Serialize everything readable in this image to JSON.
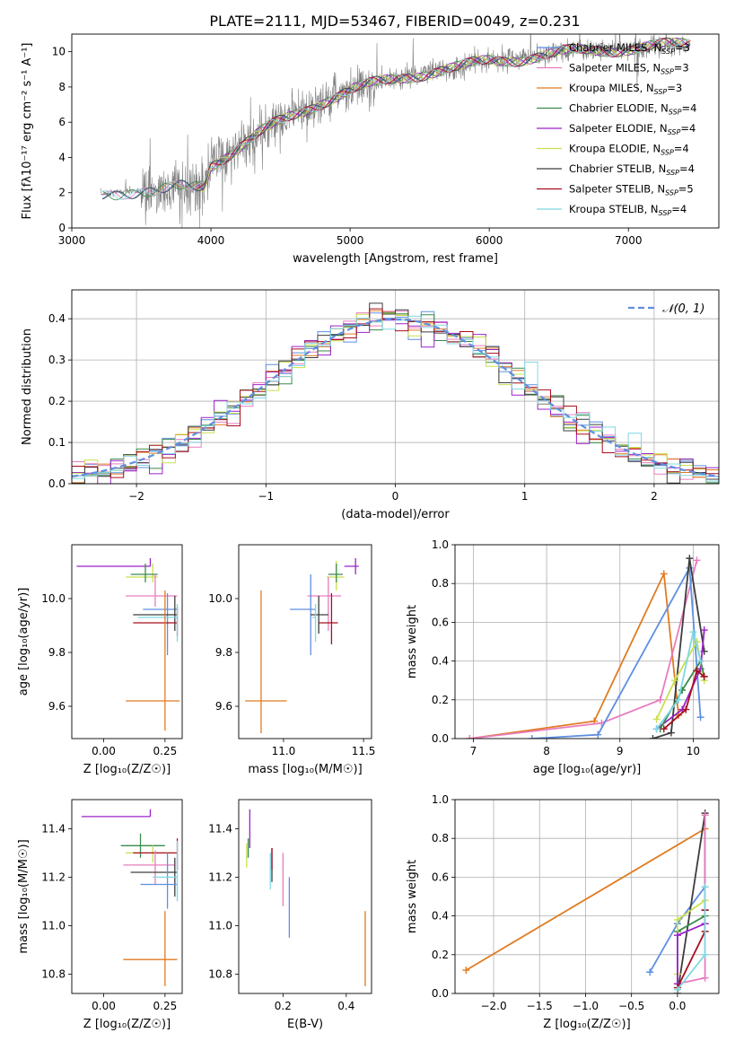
{
  "figure_title": "PLATE=2111, MJD=53467, FIBERID=0049, z=0.231",
  "colors": {
    "Chabrier MILES": "#5f8fe0",
    "Salpeter MILES": "#e87cbf",
    "Kroupa MILES": "#e07b20",
    "Chabrier ELODIE": "#3a8a4a",
    "Salpeter ELODIE": "#9b22c9",
    "Kroupa ELODIE": "#c8e04e",
    "Chabrier STELIB": "#3d3d3d",
    "Salpeter STELIB": "#a80f1f",
    "Kroupa STELIB": "#7fd8e4",
    "data": "#808080",
    "normal": "#5f8fe0"
  },
  "chart_data": [
    {
      "id": "spectrum",
      "type": "line",
      "xlabel": "wavelength [Angstrom, rest frame]",
      "ylabel": "Flux [fλ10⁻¹⁷ erg cm⁻² s⁻¹ A⁻¹]",
      "xlim": [
        3000,
        7650
      ],
      "ylim": [
        0,
        11
      ],
      "xticks": [
        "3000",
        "4000",
        "5000",
        "6000",
        "7000"
      ],
      "yticks": [
        "0",
        "2",
        "4",
        "6",
        "8",
        "10"
      ],
      "grid": false,
      "legend_position": "top-right",
      "legend": [
        {
          "label": "Chabrier MILES, N",
          "sub": "SSP",
          "suffix": "=3"
        },
        {
          "label": "Salpeter MILES, N",
          "sub": "SSP",
          "suffix": "=3"
        },
        {
          "label": "Kroupa MILES, N",
          "sub": "SSP",
          "suffix": "=3"
        },
        {
          "label": "Chabrier ELODIE, N",
          "sub": "SSP",
          "suffix": "=4"
        },
        {
          "label": "Salpeter ELODIE, N",
          "sub": "SSP",
          "suffix": "=4"
        },
        {
          "label": "Kroupa ELODIE, N",
          "sub": "SSP",
          "suffix": "=4"
        },
        {
          "label": "Chabrier STELIB, N",
          "sub": "SSP",
          "suffix": "=4"
        },
        {
          "label": "Salpeter STELIB, N",
          "sub": "SSP",
          "suffix": "=5"
        },
        {
          "label": "Kroupa STELIB, N",
          "sub": "SSP",
          "suffix": "=4"
        }
      ],
      "continuum": [
        [
          3200,
          1.9
        ],
        [
          3400,
          2.1
        ],
        [
          3600,
          2.0
        ],
        [
          3800,
          2.3
        ],
        [
          3950,
          2.4
        ],
        [
          4000,
          3.6
        ],
        [
          4200,
          4.6
        ],
        [
          4400,
          5.6
        ],
        [
          4600,
          6.4
        ],
        [
          4800,
          7.2
        ],
        [
          5000,
          7.8
        ],
        [
          5200,
          8.2
        ],
        [
          5400,
          8.6
        ],
        [
          5600,
          8.9
        ],
        [
          5800,
          9.1
        ],
        [
          6000,
          9.5
        ],
        [
          6200,
          9.6
        ],
        [
          6400,
          9.8
        ],
        [
          6600,
          10.0
        ],
        [
          6800,
          10.1
        ],
        [
          7000,
          10.2
        ],
        [
          7200,
          10.3
        ],
        [
          7400,
          10.4
        ]
      ]
    },
    {
      "id": "residuals",
      "type": "step",
      "xlabel": "(data-model)/error",
      "ylabel": "Normed distribution",
      "xlim": [
        -2.5,
        2.5
      ],
      "ylim": [
        0,
        0.47
      ],
      "xticks": [
        "−2",
        "−1",
        "0",
        "1",
        "2"
      ],
      "yticks": [
        "0.0",
        "0.1",
        "0.2",
        "0.3",
        "0.4"
      ],
      "grid": true,
      "legend_position": "top-right",
      "normal_label": "𝒩(0, 1)",
      "normal": {
        "mean": 0,
        "sigma": 1
      },
      "bin_width": 0.1
    },
    {
      "id": "age_vs_Z",
      "type": "errorbar",
      "xlabel": "Z [log₁₀(Z/Z☉)]",
      "ylabel": "age  [log₁₀(age/yr)]",
      "xlim": [
        -0.13,
        0.32
      ],
      "ylim": [
        9.48,
        10.2
      ],
      "xticks": [
        "0.00",
        "0.25"
      ],
      "ytick_values": [
        9.6,
        9.8,
        10.0
      ],
      "yticks": [
        "9.6",
        "9.8",
        "10.0"
      ],
      "points": [
        {
          "series": "Salpeter ELODIE",
          "x": 0.19,
          "xerr": [
            0.3,
            0.0
          ],
          "y": 10.12,
          "yerr": [
            0.0,
            0.03
          ]
        },
        {
          "series": "Kroupa ELODIE",
          "x": 0.2,
          "xerr": [
            0.11,
            0.02
          ],
          "y": 10.08,
          "yerr": [
            0.02,
            0.05
          ]
        },
        {
          "series": "Chabrier ELODIE",
          "x": 0.17,
          "xerr": [
            0.06,
            0.05
          ],
          "y": 10.09,
          "yerr": [
            0.03,
            0.04
          ]
        },
        {
          "series": "Salpeter MILES",
          "x": 0.21,
          "xerr": [
            0.12,
            0.09
          ],
          "y": 10.01,
          "yerr": [
            0.04,
            0.08
          ]
        },
        {
          "series": "Chabrier MILES",
          "x": 0.26,
          "xerr": [
            0.1,
            0.04
          ],
          "y": 9.96,
          "yerr": [
            0.17,
            0.06
          ]
        },
        {
          "series": "Chabrier STELIB",
          "x": 0.29,
          "xerr": [
            0.17,
            0.01
          ],
          "y": 9.94,
          "yerr": [
            0.06,
            0.07
          ]
        },
        {
          "series": "Salpeter STELIB",
          "x": 0.3,
          "xerr": [
            0.18,
            0.0
          ],
          "y": 9.91,
          "yerr": [
            0.05,
            0.06
          ]
        },
        {
          "series": "Kroupa STELIB",
          "x": 0.3,
          "xerr": [
            0.16,
            0.0
          ],
          "y": 9.93,
          "yerr": [
            0.09,
            0.05
          ]
        },
        {
          "series": "Kroupa MILES",
          "x": 0.25,
          "xerr": [
            0.16,
            0.06
          ],
          "y": 9.62,
          "yerr": [
            0.11,
            0.41
          ]
        }
      ]
    },
    {
      "id": "age_vs_mass",
      "type": "errorbar",
      "xlabel": "mass [log₁₀(M/M☉)]",
      "ylabel": "",
      "xlim": [
        10.72,
        11.55
      ],
      "ylim": [
        9.48,
        10.2
      ],
      "xtick_values": [
        11.0,
        11.5
      ],
      "xticks": [
        "11.0",
        "11.5"
      ],
      "ytick_values": [
        9.6,
        9.8,
        10.0
      ],
      "yticks": [
        "9.6",
        "9.8",
        "10.0"
      ],
      "points": [
        {
          "series": "Salpeter ELODIE",
          "x": 11.45,
          "xerr": [
            0.07,
            0.02
          ],
          "y": 10.12,
          "yerr": [
            0.03,
            0.03
          ]
        },
        {
          "series": "Kroupa ELODIE",
          "x": 11.33,
          "xerr": [
            0.06,
            0.05
          ],
          "y": 10.08,
          "yerr": [
            0.05,
            0.06
          ]
        },
        {
          "series": "Chabrier ELODIE",
          "x": 11.33,
          "xerr": [
            0.05,
            0.04
          ],
          "y": 10.09,
          "yerr": [
            0.03,
            0.04
          ]
        },
        {
          "series": "Salpeter MILES",
          "x": 11.28,
          "xerr": [
            0.13,
            0.08
          ],
          "y": 10.01,
          "yerr": [
            0.13,
            0.07
          ]
        },
        {
          "series": "Chabrier MILES",
          "x": 11.17,
          "xerr": [
            0.13,
            0.03
          ],
          "y": 9.96,
          "yerr": [
            0.17,
            0.13
          ]
        },
        {
          "series": "Chabrier STELIB",
          "x": 11.22,
          "xerr": [
            0.05,
            0.06
          ],
          "y": 9.94,
          "yerr": [
            0.07,
            0.07
          ]
        },
        {
          "series": "Salpeter STELIB",
          "x": 11.3,
          "xerr": [
            0.08,
            0.04
          ],
          "y": 9.91,
          "yerr": [
            0.08,
            0.11
          ]
        },
        {
          "series": "Kroupa STELIB",
          "x": 11.2,
          "xerr": [
            0.02,
            0.0
          ],
          "y": 9.93,
          "yerr": [
            0.09,
            0.05
          ]
        },
        {
          "series": "Kroupa MILES",
          "x": 10.86,
          "xerr": [
            0.1,
            0.16
          ],
          "y": 9.62,
          "yerr": [
            0.12,
            0.41
          ]
        }
      ]
    },
    {
      "id": "weight_vs_age",
      "type": "line",
      "xlabel": "age  [log₁₀(age/yr)]",
      "ylabel": "mass weight",
      "xlim": [
        6.75,
        10.35
      ],
      "ylim": [
        0,
        1.0
      ],
      "grid": true,
      "xtick_values": [
        7,
        8,
        9,
        10
      ],
      "xticks": [
        "7",
        "8",
        "9",
        "10"
      ],
      "ytick_values": [
        0.0,
        0.2,
        0.4,
        0.6,
        0.8,
        1.0
      ],
      "yticks": [
        "0.0",
        "0.2",
        "0.4",
        "0.6",
        "0.8",
        "1.0"
      ],
      "series": [
        {
          "name": "Kroupa MILES",
          "x": [
            6.95,
            8.65,
            9.6,
            9.8
          ],
          "y": [
            0.0,
            0.09,
            0.85,
            0.12
          ]
        },
        {
          "name": "Salpeter MILES",
          "x": [
            6.95,
            8.75,
            9.55,
            10.05
          ],
          "y": [
            0.0,
            0.08,
            0.2,
            0.92
          ]
        },
        {
          "name": "Chabrier MILES",
          "x": [
            7.8,
            8.7,
            9.95,
            10.1
          ],
          "y": [
            0.0,
            0.02,
            0.88,
            0.11
          ]
        },
        {
          "name": "Chabrier STELIB",
          "x": [
            9.45,
            9.7,
            9.95,
            10.15
          ],
          "y": [
            0.0,
            0.03,
            0.93,
            0.45
          ]
        },
        {
          "name": "Salpeter ELODIE",
          "x": [
            9.5,
            9.85,
            10.1,
            10.15
          ],
          "y": [
            0.05,
            0.15,
            0.36,
            0.56
          ]
        },
        {
          "name": "Kroupa ELODIE",
          "x": [
            9.5,
            9.75,
            10.05,
            10.15
          ],
          "y": [
            0.1,
            0.3,
            0.5,
            0.3
          ]
        },
        {
          "name": "Chabrier ELODIE",
          "x": [
            9.55,
            9.85,
            10.1,
            10.15
          ],
          "y": [
            0.05,
            0.25,
            0.4,
            0.32
          ]
        },
        {
          "name": "Salpeter STELIB",
          "x": [
            9.6,
            9.9,
            10.05,
            10.15
          ],
          "y": [
            0.05,
            0.15,
            0.35,
            0.32
          ]
        },
        {
          "name": "Kroupa STELIB",
          "x": [
            9.5,
            9.8,
            10.0,
            10.1
          ],
          "y": [
            0.05,
            0.2,
            0.55,
            0.4
          ]
        }
      ]
    },
    {
      "id": "mass_vs_Z",
      "type": "errorbar",
      "xlabel": "Z [log₁₀(Z/Z☉)]",
      "ylabel": "mass [log₁₀(M/M☉)]",
      "xlim": [
        -0.13,
        0.32
      ],
      "ylim": [
        10.72,
        11.52
      ],
      "xticks": [
        "0.00",
        "0.25"
      ],
      "ytick_values": [
        10.8,
        11.0,
        11.2,
        11.4
      ],
      "yticks": [
        "10.8",
        "11.0",
        "11.2",
        "11.4"
      ],
      "points": [
        {
          "series": "Salpeter ELODIE",
          "x": 0.19,
          "xerr": [
            0.28,
            0.0
          ],
          "y": 11.45,
          "yerr": [
            0.0,
            0.03
          ]
        },
        {
          "series": "Chabrier ELODIE",
          "x": 0.15,
          "xerr": [
            0.08,
            0.1
          ],
          "y": 11.33,
          "yerr": [
            0.05,
            0.05
          ]
        },
        {
          "series": "Kroupa ELODIE",
          "x": 0.2,
          "xerr": [
            0.11,
            0.08
          ],
          "y": 11.3,
          "yerr": [
            0.04,
            0.03
          ]
        },
        {
          "series": "Salpeter STELIB",
          "x": 0.3,
          "xerr": [
            0.18,
            0.0
          ],
          "y": 11.3,
          "yerr": [
            0.07,
            0.06
          ]
        },
        {
          "series": "Salpeter MILES",
          "x": 0.21,
          "xerr": [
            0.13,
            0.08
          ],
          "y": 11.25,
          "yerr": [
            0.08,
            0.06
          ]
        },
        {
          "series": "Chabrier STELIB",
          "x": 0.29,
          "xerr": [
            0.18,
            0.01
          ],
          "y": 11.22,
          "yerr": [
            0.1,
            0.06
          ]
        },
        {
          "series": "Chabrier MILES",
          "x": 0.26,
          "xerr": [
            0.11,
            0.04
          ],
          "y": 11.17,
          "yerr": [
            0.1,
            0.13
          ]
        },
        {
          "series": "Kroupa STELIB",
          "x": 0.3,
          "xerr": [
            0.1,
            0.0
          ],
          "y": 11.2,
          "yerr": [
            0.1,
            0.15
          ]
        },
        {
          "series": "Kroupa MILES",
          "x": 0.25,
          "xerr": [
            0.17,
            0.05
          ],
          "y": 10.86,
          "yerr": [
            0.11,
            0.2
          ]
        }
      ]
    },
    {
      "id": "mass_vs_EBV",
      "type": "errorbar",
      "xlabel": "E(B-V)",
      "ylabel": "",
      "xlim": [
        0.06,
        0.48
      ],
      "ylim": [
        10.72,
        11.52
      ],
      "xtick_values": [
        0.2,
        0.4
      ],
      "xticks": [
        "0.2",
        "0.4"
      ],
      "ytick_values": [
        10.8,
        11.0,
        11.2,
        11.4
      ],
      "yticks": [
        "10.8",
        "11.0",
        "11.2",
        "11.4"
      ],
      "points": [
        {
          "series": "Salpeter ELODIE",
          "x": 0.095,
          "xerr": [
            0,
            0
          ],
          "y": 11.4,
          "yerr": [
            0.08,
            0.08
          ]
        },
        {
          "series": "Chabrier ELODIE",
          "x": 0.09,
          "xerr": [
            0,
            0
          ],
          "y": 11.32,
          "yerr": [
            0.04,
            0.04
          ]
        },
        {
          "series": "Kroupa ELODIE",
          "x": 0.085,
          "xerr": [
            0,
            0
          ],
          "y": 11.3,
          "yerr": [
            0.06,
            0.04
          ]
        },
        {
          "series": "Chabrier STELIB",
          "x": 0.165,
          "xerr": [
            0,
            0
          ],
          "y": 11.24,
          "yerr": [
            0.06,
            0.08
          ]
        },
        {
          "series": "Salpeter STELIB",
          "x": 0.165,
          "xerr": [
            0,
            0
          ],
          "y": 11.28,
          "yerr": [
            0.05,
            0.04
          ]
        },
        {
          "series": "Kroupa STELIB",
          "x": 0.16,
          "xerr": [
            0,
            0
          ],
          "y": 11.25,
          "yerr": [
            0.1,
            0.05
          ]
        },
        {
          "series": "Salpeter MILES",
          "x": 0.2,
          "xerr": [
            0,
            0
          ],
          "y": 11.2,
          "yerr": [
            0.12,
            0.1
          ]
        },
        {
          "series": "Chabrier MILES",
          "x": 0.22,
          "xerr": [
            0,
            0
          ],
          "y": 11.1,
          "yerr": [
            0.15,
            0.1
          ]
        },
        {
          "series": "Kroupa MILES",
          "x": 0.46,
          "xerr": [
            0,
            0
          ],
          "y": 10.9,
          "yerr": [
            0.15,
            0.16
          ]
        }
      ]
    },
    {
      "id": "weight_vs_Z",
      "type": "line",
      "xlabel": "Z [log₁₀(Z/Z☉)]",
      "ylabel": "mass weight",
      "xlim": [
        -2.42,
        0.45
      ],
      "ylim": [
        0,
        1.0
      ],
      "grid": true,
      "xtick_values": [
        -2.0,
        -1.5,
        -1.0,
        -0.5,
        0.0
      ],
      "xticks": [
        "−2.0",
        "−1.5",
        "−1.0",
        "−0.5",
        "0.0"
      ],
      "ytick_values": [
        0.0,
        0.2,
        0.4,
        0.6,
        0.8,
        1.0
      ],
      "yticks": [
        "0.0",
        "0.2",
        "0.4",
        "0.6",
        "0.8",
        "1.0"
      ],
      "series": [
        {
          "name": "Kroupa MILES",
          "x": [
            -2.3,
            0.3
          ],
          "y": [
            0.12,
            0.85
          ]
        },
        {
          "name": "Chabrier MILES",
          "x": [
            -0.3,
            0.0,
            0.3
          ],
          "y": [
            0.11,
            0.36,
            0.55
          ]
        },
        {
          "name": "Chabrier STELIB",
          "x": [
            0.0,
            0.3,
            0.3
          ],
          "y": [
            0.0,
            0.93,
            0.43
          ]
        },
        {
          "name": "Salpeter MILES",
          "x": [
            0.0,
            0.3,
            0.3
          ],
          "y": [
            0.05,
            0.08,
            0.92
          ]
        },
        {
          "name": "Chabrier ELODIE",
          "x": [
            0.0,
            0.0,
            0.3
          ],
          "y": [
            0.05,
            0.32,
            0.4
          ]
        },
        {
          "name": "Kroupa ELODIE",
          "x": [
            0.0,
            0.0,
            0.3
          ],
          "y": [
            0.1,
            0.38,
            0.48
          ]
        },
        {
          "name": "Salpeter ELODIE",
          "x": [
            0.0,
            0.0,
            0.3
          ],
          "y": [
            0.05,
            0.3,
            0.36
          ]
        },
        {
          "name": "Salpeter STELIB",
          "x": [
            0.0,
            0.3,
            0.3
          ],
          "y": [
            0.03,
            0.32,
            0.43
          ]
        },
        {
          "name": "Kroupa STELIB",
          "x": [
            0.0,
            0.3,
            0.3
          ],
          "y": [
            0.02,
            0.2,
            0.55
          ]
        }
      ]
    }
  ]
}
